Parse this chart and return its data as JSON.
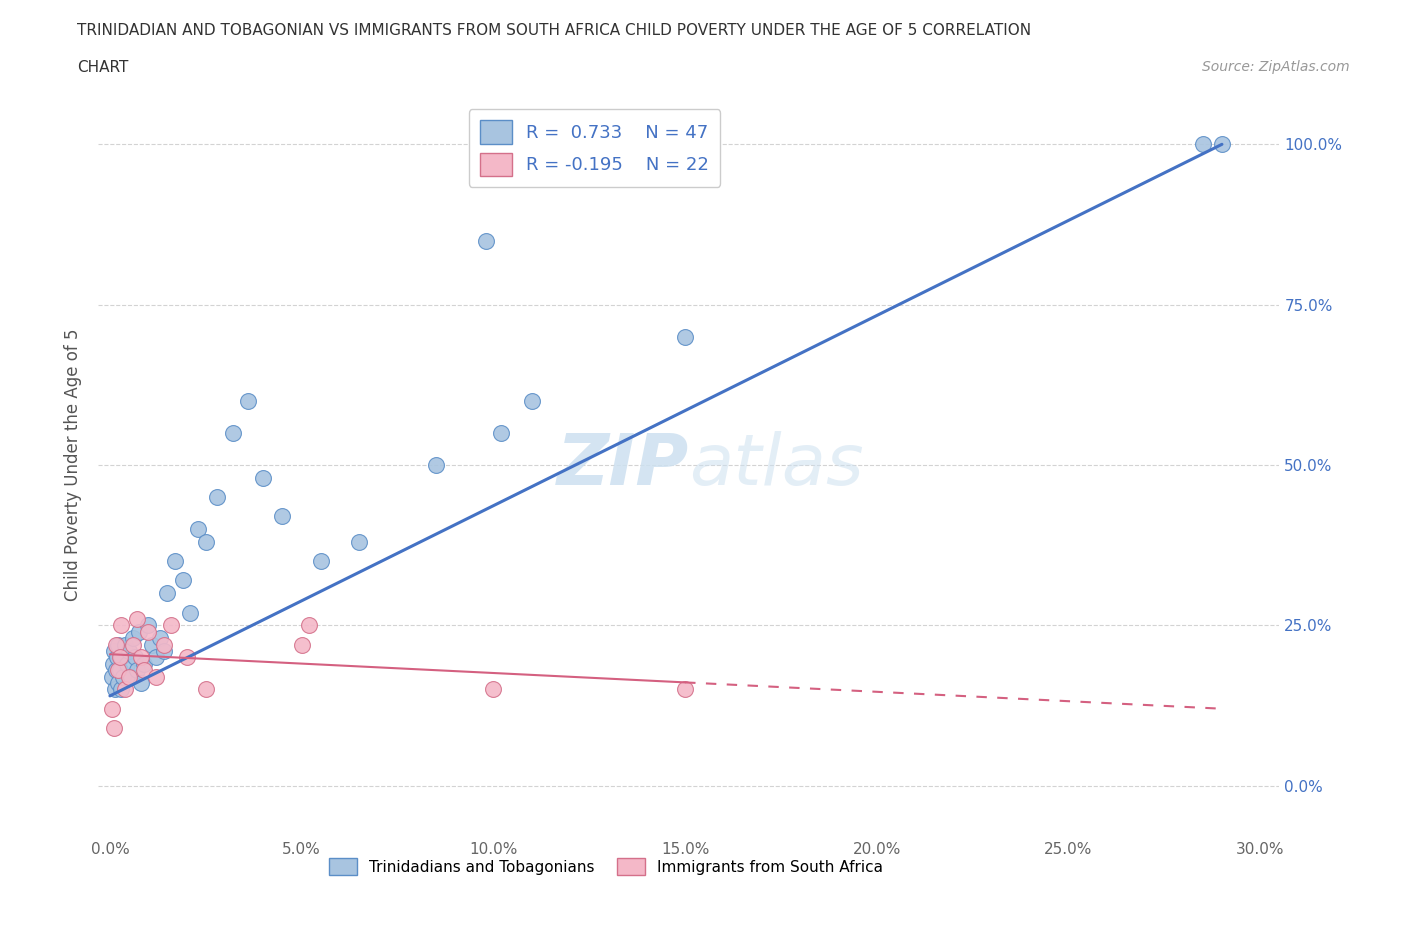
{
  "title_line1": "TRINIDADIAN AND TOBAGONIAN VS IMMIGRANTS FROM SOUTH AFRICA CHILD POVERTY UNDER THE AGE OF 5 CORRELATION",
  "title_line2": "CHART",
  "source": "Source: ZipAtlas.com",
  "ylabel": "Child Poverty Under the Age of 5",
  "xlim": [
    -0.3,
    30.5
  ],
  "ylim": [
    -8,
    108
  ],
  "xtick_vals": [
    0,
    5,
    10,
    15,
    20,
    25,
    30
  ],
  "ytick_vals": [
    0,
    25,
    50,
    75,
    100
  ],
  "blue_R": 0.733,
  "blue_N": 47,
  "pink_R": -0.195,
  "pink_N": 22,
  "blue_scatter_color": "#a8c4e0",
  "blue_edge_color": "#5b8ec7",
  "blue_line_color": "#4472C4",
  "pink_scatter_color": "#f4b8c8",
  "pink_edge_color": "#d4708a",
  "pink_line_color": "#d46080",
  "watermark_color": "#cde0f0",
  "legend_label_blue": "Trinidadians and Tobagonians",
  "legend_label_pink": "Immigrants from South Africa",
  "blue_x": [
    0.05,
    0.08,
    0.1,
    0.12,
    0.15,
    0.18,
    0.2,
    0.22,
    0.25,
    0.28,
    0.3,
    0.35,
    0.4,
    0.45,
    0.5,
    0.55,
    0.6,
    0.65,
    0.7,
    0.75,
    0.8,
    0.9,
    1.0,
    1.1,
    1.2,
    1.3,
    1.4,
    1.5,
    1.7,
    1.9,
    2.1,
    2.3,
    2.5,
    2.8,
    3.2,
    3.6,
    4.0,
    4.5,
    5.5,
    6.5,
    8.5,
    9.8,
    10.2,
    11.0,
    15.0,
    28.5,
    29.0
  ],
  "blue_y": [
    17,
    19,
    21,
    15,
    18,
    20,
    16,
    22,
    18,
    20,
    15,
    17,
    22,
    19,
    21,
    17,
    23,
    20,
    18,
    24,
    16,
    19,
    25,
    22,
    20,
    23,
    21,
    30,
    35,
    32,
    27,
    40,
    38,
    45,
    55,
    60,
    48,
    42,
    35,
    38,
    50,
    85,
    55,
    60,
    70,
    100,
    100
  ],
  "pink_x": [
    0.05,
    0.1,
    0.15,
    0.2,
    0.25,
    0.3,
    0.4,
    0.5,
    0.6,
    0.7,
    0.8,
    0.9,
    1.0,
    1.2,
    1.4,
    1.6,
    2.0,
    2.5,
    5.0,
    5.2,
    10.0,
    15.0
  ],
  "pink_y": [
    12,
    9,
    22,
    18,
    20,
    25,
    15,
    17,
    22,
    26,
    20,
    18,
    24,
    17,
    22,
    25,
    20,
    15,
    22,
    25,
    15,
    15
  ],
  "blue_line_x0": 0.0,
  "blue_line_y0": 14.0,
  "blue_line_x1": 29.0,
  "blue_line_y1": 100.0,
  "pink_line_x0": 0.0,
  "pink_line_y0": 20.5,
  "pink_line_x1": 29.0,
  "pink_line_y1": 12.0,
  "pink_line_solid_x1": 15.0,
  "title_fontsize": 11,
  "tick_fontsize": 11,
  "ylabel_fontsize": 12,
  "source_fontsize": 10
}
